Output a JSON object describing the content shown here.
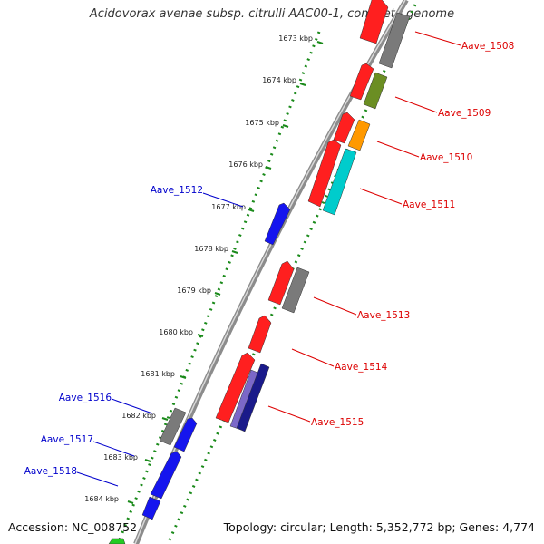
{
  "title": "Acidovorax avenae subsp. citrulli AAC00-1, complete genome",
  "accession": "Accession: NC_008752",
  "topology": "Topology: circular; Length: 5,352,772 bp; Genes: 4,774",
  "colors": {
    "backbone": "#8a8a8a",
    "tick_track": "#1a8a1a",
    "forward_label": "#dd0000",
    "reverse_label": "#0000cc"
  },
  "scale": {
    "labels": [
      "1673 kbp",
      "1674 kbp",
      "1675 kbp",
      "1676 kbp",
      "1677 kbp",
      "1678 kbp",
      "1679 kbp",
      "1680 kbp",
      "1681 kbp",
      "1682 kbp",
      "1683 kbp",
      "1684 kbp"
    ]
  },
  "forward_labels": [
    "Aave_1508",
    "Aave_1509",
    "Aave_1510",
    "Aave_1511",
    "Aave_1513",
    "Aave_1514",
    "Aave_1515"
  ],
  "reverse_labels": [
    "Aave_1512",
    "Aave_1516",
    "Aave_1517",
    "Aave_1518"
  ]
}
